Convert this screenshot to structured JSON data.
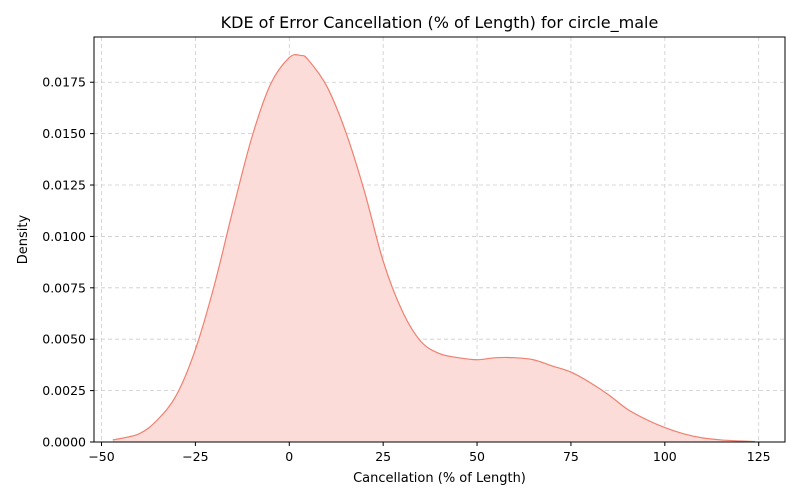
{
  "chart_data": {
    "type": "area",
    "title": "KDE of Error Cancellation (% of Length) for circle_male",
    "xlabel": "Cancellation (% of Length)",
    "ylabel": "Density",
    "xlim": [
      -52,
      132
    ],
    "ylim": [
      0,
      0.0197
    ],
    "xticks": [
      -50,
      -25,
      0,
      25,
      50,
      75,
      100,
      125
    ],
    "xtick_labels": [
      "−50",
      "−25",
      "0",
      "25",
      "50",
      "75",
      "100",
      "125"
    ],
    "yticks": [
      0,
      0.0025,
      0.005,
      0.0075,
      0.01,
      0.0125,
      0.015,
      0.0175
    ],
    "ytick_labels": [
      "0.0000",
      "0.0025",
      "0.0050",
      "0.0075",
      "0.0100",
      "0.0125",
      "0.0150",
      "0.0175"
    ],
    "grid": true,
    "series": [
      {
        "x": [
          -47,
          -40,
          -35,
          -30,
          -25,
          -20,
          -15,
          -10,
          -5,
          0,
          3,
          5,
          10,
          15,
          20,
          25,
          30,
          35,
          40,
          45,
          50,
          55,
          60,
          65,
          70,
          75,
          80,
          85,
          90,
          95,
          100,
          105,
          110,
          115,
          120,
          124
        ],
        "y": [
          0.0001,
          0.0004,
          0.0011,
          0.0023,
          0.0045,
          0.0076,
          0.0113,
          0.0148,
          0.0174,
          0.0187,
          0.0188,
          0.0186,
          0.0173,
          0.0151,
          0.0122,
          0.0088,
          0.0064,
          0.0049,
          0.0043,
          0.0041,
          0.004,
          0.0041,
          0.0041,
          0.004,
          0.0037,
          0.0034,
          0.0029,
          0.0023,
          0.0016,
          0.0011,
          0.0007,
          0.0004,
          0.0002,
          0.0001,
          5e-05,
          2e-05
        ]
      }
    ],
    "colors": {
      "line": "#f08070",
      "fill": "#fcdcd8",
      "grid": "#cccccc",
      "axis": "#000000"
    }
  }
}
